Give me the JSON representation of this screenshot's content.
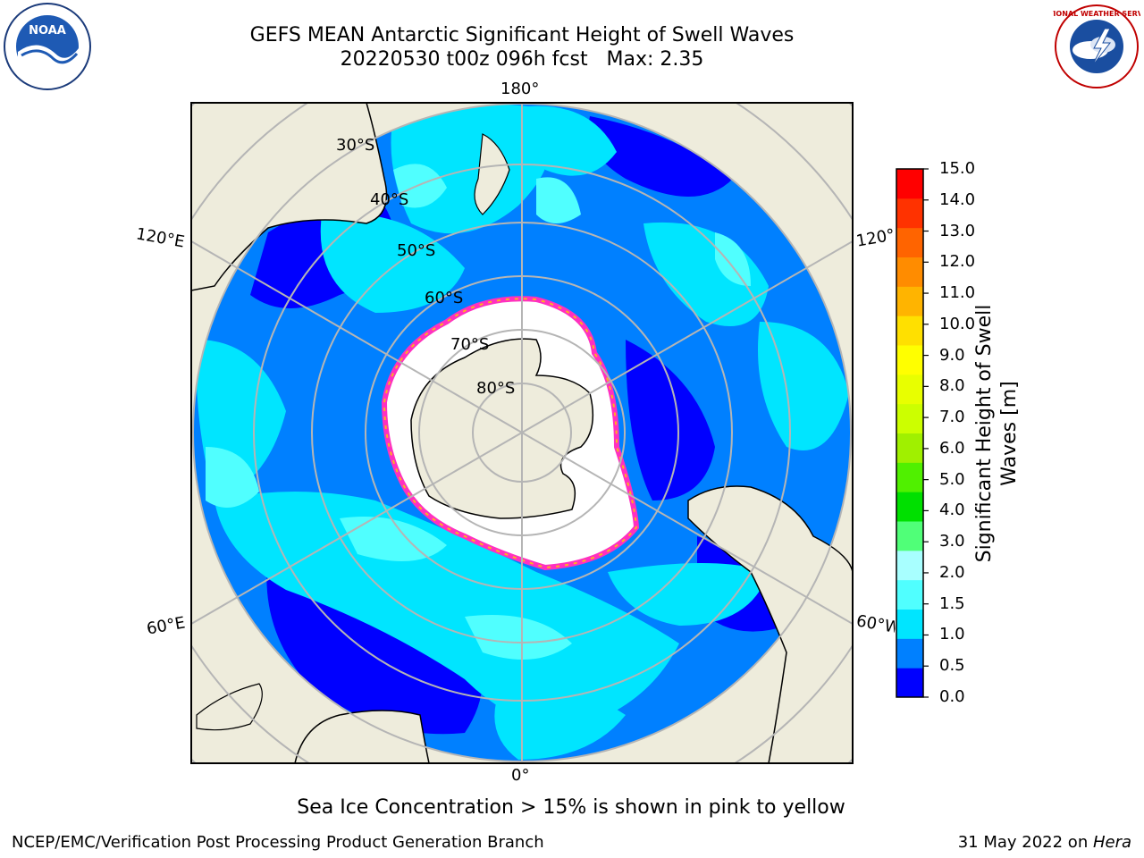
{
  "title": {
    "line1": "GEFS MEAN Antarctic Significant Height of Swell Waves",
    "line2": "20220530 t00z 096h fcst   Max: 2.35"
  },
  "logos": {
    "left": {
      "icon": "noaa-logo-icon",
      "text": "NOAA"
    },
    "right": {
      "icon": "national-weather-service-logo-icon",
      "text": "NATIONAL WEATHER SERVICE"
    }
  },
  "map": {
    "projection": "south-polar-stereographic",
    "longitude_labels": {
      "top": "180°",
      "bottom": "0°",
      "upper_left": "120°E",
      "upper_right": "120°W",
      "lower_left": "60°E",
      "lower_right": "60°W"
    },
    "latitude_labels": [
      "30°S",
      "40°S",
      "50°S",
      "60°S",
      "70°S",
      "80°S"
    ],
    "colors": {
      "land": "#eeecdc",
      "ice": "#ffffff",
      "ice_edge": [
        "#ff30c0",
        "#ffb020"
      ]
    }
  },
  "colorbar": {
    "label": "Significant Height of Swell Waves [m]",
    "ticks": [
      "15.0",
      "14.0",
      "13.0",
      "12.0",
      "11.0",
      "10.0",
      "9.0",
      "8.0",
      "7.0",
      "6.0",
      "5.0",
      "4.0",
      "3.0",
      "2.0",
      "1.5",
      "1.0",
      "0.5",
      "0.0"
    ],
    "colors": [
      "#0000ff",
      "#0080ff",
      "#00e5ff",
      "#50ffff",
      "#a8ffff",
      "#50ff78",
      "#00e000",
      "#50f000",
      "#a0f000",
      "#ccff00",
      "#e8ff00",
      "#ffff00",
      "#ffe000",
      "#ffb400",
      "#ff8c00",
      "#ff6400",
      "#ff3200",
      "#ff0000"
    ]
  },
  "note": "Sea Ice Concentration > 15% is shown in pink to yellow",
  "footer": {
    "left": "NCEP/EMC/Verification Post Processing Product Generation Branch",
    "right_date": "31 May 2022 on ",
    "right_host": "Hera"
  }
}
